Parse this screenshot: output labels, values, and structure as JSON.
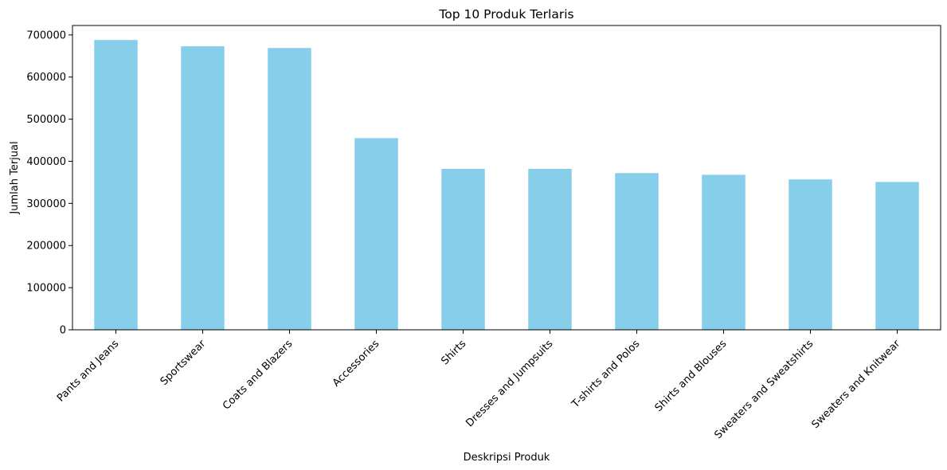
{
  "chart_data": {
    "type": "bar",
    "title": "Top 10 Produk Terlaris",
    "xlabel": "Deskripsi Produk",
    "ylabel": "Jumlah Terjual",
    "categories": [
      "Pants and Jeans",
      "Sportswear",
      "Coats and Blazers",
      "Accessories",
      "Shirts",
      "Dresses and Jumpsuits",
      "T-shirts and Polos",
      "Shirts and Blouses",
      "Sweaters and Sweatshirts",
      "Sweaters and Knitwear"
    ],
    "values": [
      688000,
      673000,
      669000,
      455000,
      382000,
      382000,
      372000,
      368000,
      357000,
      351000
    ],
    "ylim": [
      0,
      722400
    ],
    "yticks": [
      0,
      100000,
      200000,
      300000,
      400000,
      500000,
      600000,
      700000
    ],
    "ytick_labels": [
      "0",
      "100000",
      "200000",
      "300000",
      "400000",
      "500000",
      "600000",
      "700000"
    ],
    "bar_color": "#87ceeb",
    "grid": false,
    "legend": "none"
  }
}
